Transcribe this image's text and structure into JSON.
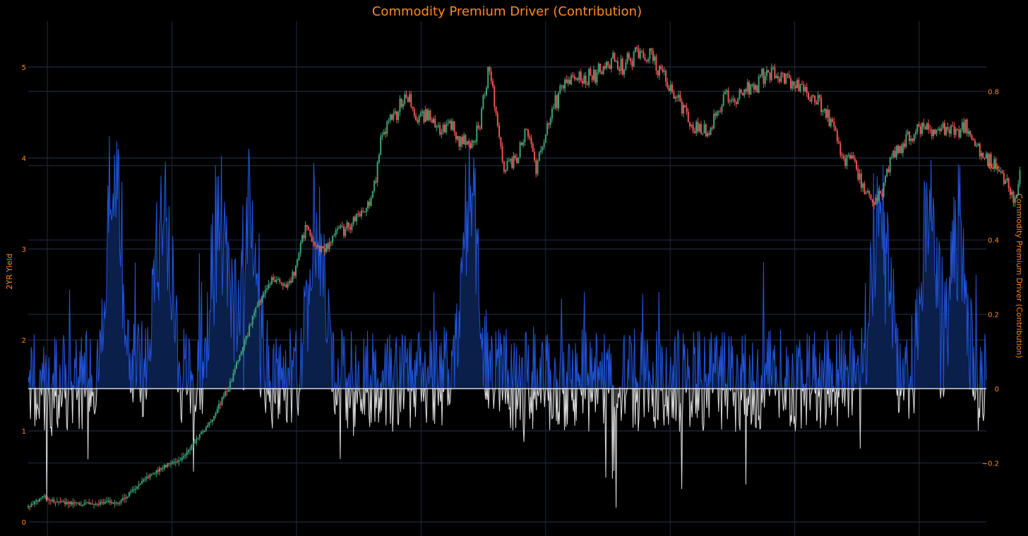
{
  "chart_data": {
    "type": "line",
    "title": "Commodity Premium Driver (Contribution)",
    "y_left": {
      "label": "2YR Yield",
      "range": [
        0,
        5.3
      ],
      "ticks": [
        0,
        1,
        2,
        3,
        4,
        5
      ]
    },
    "y_right": {
      "label": "Commodity Premium Driver (Contribution)",
      "range": [
        -0.36,
        0.9
      ],
      "ticks": [
        -0.2,
        0,
        0.2,
        0.4,
        0.6,
        0.8
      ],
      "tick_labels": [
        "−0.2",
        "0",
        "0.2",
        "0.4",
        "0.6",
        "0.8"
      ]
    },
    "x": {
      "range": [
        0,
        100
      ],
      "grid_positions": [
        2,
        15,
        28,
        41,
        54,
        67,
        80,
        93
      ]
    },
    "grid": true,
    "series": [
      {
        "kind": "candlestick",
        "axis": "left",
        "colors": {
          "up": "#3ea37a",
          "down": "#ef5350"
        },
        "anchors": [
          [
            0,
            0.16
          ],
          [
            1.5,
            0.28
          ],
          [
            3,
            0.22
          ],
          [
            5,
            0.2
          ],
          [
            7,
            0.2
          ],
          [
            8,
            0.22
          ],
          [
            9.5,
            0.22
          ],
          [
            11,
            0.35
          ],
          [
            12.5,
            0.5
          ],
          [
            14,
            0.6
          ],
          [
            16,
            0.7
          ],
          [
            17.5,
            0.9
          ],
          [
            19,
            1.1
          ],
          [
            20,
            1.3
          ],
          [
            21,
            1.5
          ],
          [
            22,
            1.8
          ],
          [
            23,
            2.1
          ],
          [
            24,
            2.4
          ],
          [
            25,
            2.6
          ],
          [
            26,
            2.7
          ],
          [
            27,
            2.6
          ],
          [
            28,
            2.8
          ],
          [
            29,
            3.3
          ],
          [
            30,
            3.0
          ],
          [
            31,
            3.0
          ],
          [
            32,
            3.2
          ],
          [
            33,
            3.2
          ],
          [
            34,
            3.3
          ],
          [
            35,
            3.45
          ],
          [
            36,
            3.6
          ],
          [
            37,
            4.3
          ],
          [
            38.5,
            4.5
          ],
          [
            39.5,
            4.75
          ],
          [
            40.5,
            4.4
          ],
          [
            42,
            4.5
          ],
          [
            43,
            4.3
          ],
          [
            44,
            4.4
          ],
          [
            45,
            4.2
          ],
          [
            46,
            4.15
          ],
          [
            47,
            4.3
          ],
          [
            48.2,
            5.05
          ],
          [
            48.8,
            4.5
          ],
          [
            49.5,
            3.9
          ],
          [
            51,
            4.0
          ],
          [
            52,
            4.3
          ],
          [
            53,
            3.85
          ],
          [
            54,
            4.3
          ],
          [
            55,
            4.6
          ],
          [
            56,
            4.8
          ],
          [
            57,
            4.9
          ],
          [
            58,
            4.9
          ],
          [
            59,
            4.9
          ],
          [
            60,
            5.0
          ],
          [
            61,
            5.1
          ],
          [
            62,
            5.0
          ],
          [
            63,
            5.1
          ],
          [
            64,
            5.2
          ],
          [
            65,
            5.1
          ],
          [
            66,
            4.9
          ],
          [
            67,
            4.8
          ],
          [
            68,
            4.6
          ],
          [
            69,
            4.4
          ],
          [
            70,
            4.3
          ],
          [
            71,
            4.3
          ],
          [
            72,
            4.5
          ],
          [
            73,
            4.7
          ],
          [
            74,
            4.65
          ],
          [
            75,
            4.75
          ],
          [
            76,
            4.8
          ],
          [
            77,
            4.95
          ],
          [
            78,
            4.9
          ],
          [
            79,
            4.85
          ],
          [
            80,
            4.85
          ],
          [
            81,
            4.7
          ],
          [
            82,
            4.7
          ],
          [
            83,
            4.55
          ],
          [
            84,
            4.35
          ],
          [
            85,
            3.95
          ],
          [
            86,
            4.0
          ],
          [
            87,
            3.7
          ],
          [
            88,
            3.5
          ],
          [
            89,
            3.6
          ],
          [
            90,
            4.0
          ],
          [
            91,
            4.1
          ],
          [
            92,
            4.25
          ],
          [
            93,
            4.3
          ],
          [
            94,
            4.3
          ],
          [
            95,
            4.35
          ],
          [
            96,
            4.3
          ],
          [
            97,
            4.3
          ],
          [
            98,
            4.35
          ],
          [
            99,
            4.1
          ],
          [
            100,
            4.0
          ],
          [
            101,
            3.9
          ],
          [
            102,
            3.75
          ],
          [
            103,
            3.5
          ],
          [
            103.5,
            3.9
          ]
        ]
      },
      {
        "kind": "area",
        "axis": "right",
        "positive_color": "#2255dd",
        "negative_color": "#dddddd",
        "zero_line_color": "#ffffff"
      }
    ]
  }
}
